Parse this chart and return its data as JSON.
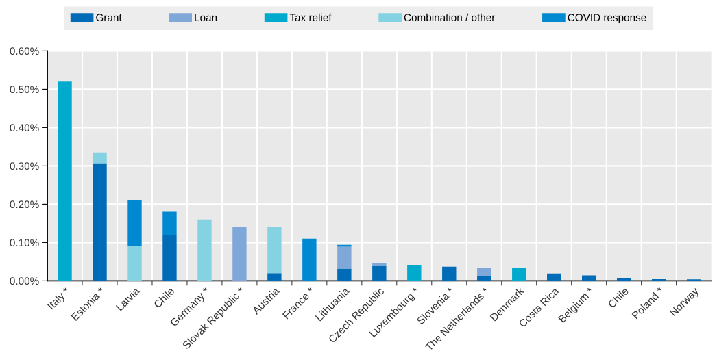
{
  "chart_data": {
    "type": "bar",
    "stacked": true,
    "categories": [
      "Italy *",
      "Estonia *",
      "Latvia",
      "Chile",
      "Germany *",
      "Slovak Republic *",
      "Austria",
      "France *",
      "Lithuania",
      "Czech Republic",
      "Luxembourg *",
      "Slovenia *",
      "The Netherlands *",
      "Denmark",
      "Costa Rica",
      "Belgium *",
      "Chile",
      "Poland *",
      "Norway"
    ],
    "series": [
      {
        "name": "Grant",
        "color": "#006bb6",
        "values": [
          0,
          0.307,
          0,
          0.12,
          0,
          0,
          0.02,
          0,
          0.032,
          0.039,
          0,
          0.037,
          0.0125,
          0,
          0.019,
          0.014,
          0.006,
          0.0045,
          0.004
        ]
      },
      {
        "name": "Loan",
        "color": "#7fa8d9",
        "values": [
          0,
          0,
          0,
          0,
          0,
          0.14,
          0,
          0,
          0.057,
          0.007,
          0,
          0,
          0.021,
          0,
          0,
          0,
          0,
          0,
          0
        ]
      },
      {
        "name": "Tax relief",
        "color": "#00aacc",
        "values": [
          0.52,
          0,
          0,
          0,
          0,
          0,
          0,
          0,
          0,
          0,
          0.042,
          0,
          0,
          0.033,
          0,
          0,
          0,
          0,
          0
        ]
      },
      {
        "name": "Combination / other",
        "color": "#85d2e3",
        "values": [
          0,
          0.028,
          0.09,
          0,
          0.16,
          0,
          0.12,
          0,
          0,
          0,
          0,
          0,
          0,
          0,
          0,
          0,
          0,
          0,
          0
        ]
      },
      {
        "name": "COVID response",
        "color": "#0088d1",
        "values": [
          0,
          0,
          0.12,
          0.06,
          0,
          0,
          0,
          0.11,
          0.005,
          0,
          0,
          0,
          0,
          0,
          0,
          0,
          0,
          0,
          0
        ]
      }
    ],
    "ylim": [
      0,
      0.6
    ],
    "yticks": [
      {
        "value": 0,
        "label": "0.00%"
      },
      {
        "value": 0.1,
        "label": "0.10%"
      },
      {
        "value": 0.2,
        "label": "0.20%"
      },
      {
        "value": 0.3,
        "label": "0.30%"
      },
      {
        "value": 0.4,
        "label": "0.40%"
      },
      {
        "value": 0.5,
        "label": "0.50%"
      },
      {
        "value": 0.6,
        "label": "0.60%"
      }
    ],
    "grid": true,
    "legend": "top"
  }
}
